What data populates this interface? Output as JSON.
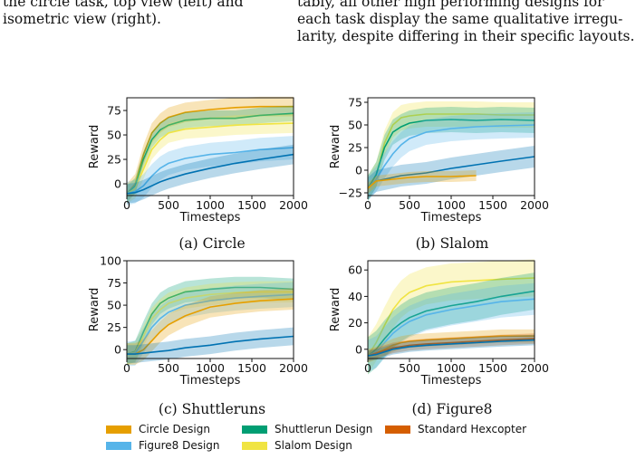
{
  "text": {
    "left_lines": [
      "the circle task, top view (left) and",
      "isometric view (right)."
    ],
    "right_lines": [
      "tably, all other high performing designs for",
      "each task display the same qualitative irregu-",
      "larity, despite differing in their specific layouts."
    ]
  },
  "colors": {
    "circle": "#e69f00",
    "figure8": "#56b4e9",
    "shuttlerun": "#009e73",
    "slalom": "#f0e442",
    "standard": "#d55e00",
    "baseline": "#0072b2"
  },
  "legend": [
    {
      "label": "Circle Design",
      "color": "#e69f00"
    },
    {
      "label": "Figure8 Design",
      "color": "#56b4e9"
    },
    {
      "label": "Shuttlerun Design",
      "color": "#009e73"
    },
    {
      "label": "Slalom Design",
      "color": "#f0e442"
    },
    {
      "label": "Standard Hexcopter",
      "color": "#d55e00"
    }
  ],
  "captions": [
    "(a) Circle",
    "(b) Slalom",
    "(c) Shuttleruns",
    "(d) Figure8"
  ],
  "chart_data": [
    {
      "type": "line",
      "xlabel": "Timesteps",
      "ylabel": "Reward",
      "xlim": [
        0,
        2000
      ],
      "ylim": [
        -12,
        88
      ],
      "xticks": [
        0,
        500,
        1000,
        1500,
        2000
      ],
      "yticks": [
        0,
        25,
        50,
        75
      ],
      "x": [
        0,
        100,
        200,
        300,
        400,
        500,
        700,
        1000,
        1300,
        1600,
        2000
      ],
      "series": [
        {
          "key": "circle",
          "values": [
            -10,
            0,
            30,
            52,
            62,
            68,
            73,
            76,
            78,
            79,
            79
          ],
          "band": 10
        },
        {
          "key": "shuttlerun",
          "values": [
            -10,
            -2,
            25,
            45,
            55,
            60,
            65,
            67,
            67,
            70,
            72
          ],
          "band": 8
        },
        {
          "key": "slalom",
          "values": [
            -10,
            -5,
            15,
            35,
            45,
            52,
            56,
            58,
            60,
            61,
            62
          ],
          "band": 10
        },
        {
          "key": "figure8",
          "values": [
            -10,
            -8,
            -2,
            8,
            16,
            21,
            26,
            30,
            32,
            35,
            37
          ],
          "band": 12
        },
        {
          "key": "baseline",
          "values": [
            -10,
            -9,
            -6,
            -2,
            2,
            5,
            10,
            16,
            21,
            25,
            30
          ],
          "band": 10
        }
      ]
    },
    {
      "type": "line",
      "xlabel": "Timesteps",
      "ylabel": "Reward",
      "xlim": [
        0,
        2000
      ],
      "ylim": [
        -28,
        80
      ],
      "xticks": [
        0,
        500,
        1000,
        1500,
        2000
      ],
      "yticks": [
        -25,
        0,
        25,
        50,
        75
      ],
      "x": [
        0,
        100,
        200,
        300,
        400,
        500,
        700,
        1000,
        1300,
        1600,
        2000
      ],
      "series": [
        {
          "key": "slalom",
          "values": [
            -20,
            -5,
            30,
            50,
            58,
            60,
            62,
            62,
            62,
            61,
            61
          ],
          "band": 14
        },
        {
          "key": "shuttlerun",
          "values": [
            -20,
            -5,
            25,
            42,
            48,
            52,
            55,
            56,
            55,
            56,
            55
          ],
          "band": 14
        },
        {
          "key": "figure8",
          "values": [
            -20,
            -10,
            5,
            18,
            28,
            35,
            42,
            46,
            48,
            49,
            50
          ],
          "band": 14
        },
        {
          "key": "baseline",
          "values": [
            -20,
            -12,
            -10,
            -8,
            -6,
            -5,
            -3,
            2,
            6,
            10,
            15
          ],
          "band": 12
        },
        {
          "key": "circle",
          "values": [
            -20,
            -12,
            -11,
            -10,
            -9,
            -8,
            -7,
            -7,
            -6,
            null,
            null
          ],
          "band": 6
        }
      ]
    },
    {
      "type": "line",
      "xlabel": "Timesteps",
      "ylabel": "Reward",
      "xlim": [
        0,
        2000
      ],
      "ylim": [
        -10,
        100
      ],
      "xticks": [
        0,
        500,
        1000,
        1500,
        2000
      ],
      "yticks": [
        0,
        25,
        50,
        75,
        100
      ],
      "x": [
        0,
        100,
        200,
        300,
        400,
        500,
        700,
        1000,
        1300,
        1600,
        2000
      ],
      "series": [
        {
          "key": "shuttlerun",
          "values": [
            -5,
            -2,
            20,
            40,
            52,
            58,
            65,
            68,
            70,
            70,
            68
          ],
          "band": 12
        },
        {
          "key": "slalom",
          "values": [
            -5,
            -3,
            15,
            35,
            45,
            52,
            58,
            62,
            64,
            65,
            65
          ],
          "band": 12
        },
        {
          "key": "figure8",
          "values": [
            -5,
            -4,
            10,
            25,
            35,
            42,
            50,
            55,
            58,
            60,
            62
          ],
          "band": 14
        },
        {
          "key": "circle",
          "values": [
            -5,
            -5,
            0,
            10,
            20,
            28,
            38,
            48,
            52,
            55,
            57
          ],
          "band": 12
        },
        {
          "key": "baseline",
          "values": [
            -5,
            -5,
            -4,
            -3,
            -2,
            -1,
            2,
            5,
            9,
            12,
            15
          ],
          "band": 10
        }
      ]
    },
    {
      "type": "line",
      "xlabel": "Timesteps",
      "ylabel": "Reward",
      "xlim": [
        0,
        2000
      ],
      "ylim": [
        -7,
        67
      ],
      "xticks": [
        0,
        500,
        1000,
        1500,
        2000
      ],
      "yticks": [
        0,
        20,
        40,
        60
      ],
      "x": [
        0,
        100,
        200,
        300,
        400,
        500,
        700,
        1000,
        1300,
        1600,
        2000
      ],
      "series": [
        {
          "key": "slalom",
          "values": [
            -5,
            5,
            18,
            30,
            38,
            43,
            48,
            51,
            52,
            53,
            54
          ],
          "band": 14
        },
        {
          "key": "shuttlerun",
          "values": [
            -5,
            0,
            8,
            15,
            20,
            24,
            29,
            33,
            36,
            40,
            44
          ],
          "band": 14
        },
        {
          "key": "figure8",
          "values": [
            -5,
            -2,
            5,
            12,
            17,
            21,
            26,
            30,
            33,
            36,
            38
          ],
          "band": 12
        },
        {
          "key": "circle",
          "values": [
            -5,
            -3,
            0,
            3,
            5,
            6,
            7,
            8,
            9,
            10,
            10
          ],
          "band": 5
        },
        {
          "key": "standard",
          "values": [
            -5,
            -3,
            -1,
            1,
            2,
            3,
            4,
            5,
            6,
            7,
            8
          ],
          "band": 4
        },
        {
          "key": "baseline",
          "values": [
            -5,
            -4,
            -2,
            0,
            1,
            2,
            3,
            4,
            5,
            6,
            7
          ],
          "band": 4
        }
      ]
    }
  ]
}
